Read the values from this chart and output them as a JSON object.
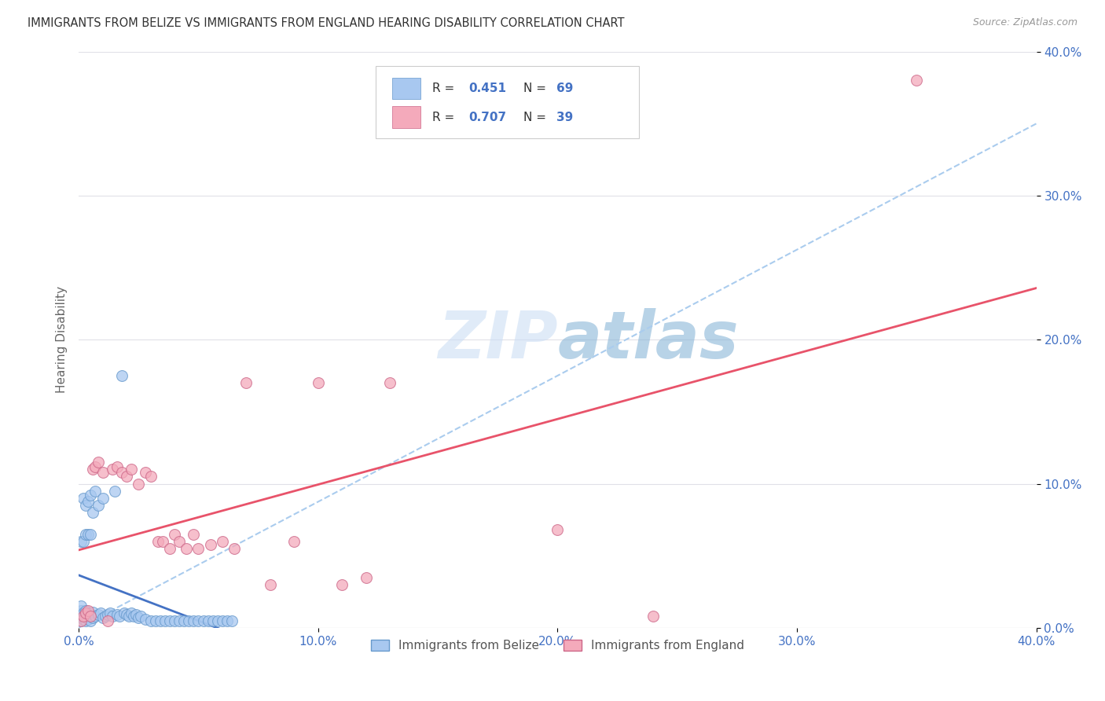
{
  "title": "IMMIGRANTS FROM BELIZE VS IMMIGRANTS FROM ENGLAND HEARING DISABILITY CORRELATION CHART",
  "source": "Source: ZipAtlas.com",
  "ylabel": "Hearing Disability",
  "xlim": [
    0.0,
    0.4
  ],
  "ylim": [
    0.0,
    0.4
  ],
  "yticks": [
    0.0,
    0.1,
    0.2,
    0.3,
    0.4
  ],
  "xticks": [
    0.0,
    0.1,
    0.2,
    0.3,
    0.4
  ],
  "belize_scatter_color": "#A8C8F0",
  "belize_edge_color": "#6699CC",
  "england_scatter_color": "#F4AABB",
  "england_edge_color": "#CC6688",
  "belize_line_color": "#4472C4",
  "england_line_color": "#E8536A",
  "dashed_line_color": "#AACCEE",
  "legend_text_color": "#4472C4",
  "watermark_color": "#C8DCF4",
  "background_color": "#FFFFFF",
  "grid_color": "#E0E0E8",
  "belize_x": [
    0.001,
    0.001,
    0.001,
    0.001,
    0.001,
    0.002,
    0.002,
    0.002,
    0.002,
    0.003,
    0.003,
    0.003,
    0.003,
    0.004,
    0.004,
    0.004,
    0.005,
    0.005,
    0.005,
    0.006,
    0.006,
    0.006,
    0.007,
    0.007,
    0.008,
    0.008,
    0.009,
    0.01,
    0.01,
    0.011,
    0.012,
    0.013,
    0.014,
    0.015,
    0.016,
    0.017,
    0.018,
    0.019,
    0.02,
    0.021,
    0.022,
    0.023,
    0.024,
    0.025,
    0.026,
    0.028,
    0.03,
    0.032,
    0.034,
    0.036,
    0.038,
    0.04,
    0.042,
    0.044,
    0.046,
    0.048,
    0.05,
    0.052,
    0.054,
    0.056,
    0.058,
    0.06,
    0.062,
    0.064,
    0.001,
    0.002,
    0.003,
    0.004,
    0.005
  ],
  "belize_y": [
    0.005,
    0.008,
    0.01,
    0.012,
    0.015,
    0.006,
    0.008,
    0.01,
    0.09,
    0.005,
    0.008,
    0.012,
    0.085,
    0.006,
    0.01,
    0.088,
    0.005,
    0.009,
    0.092,
    0.007,
    0.011,
    0.08,
    0.008,
    0.095,
    0.009,
    0.085,
    0.01,
    0.007,
    0.09,
    0.008,
    0.009,
    0.01,
    0.008,
    0.095,
    0.009,
    0.008,
    0.175,
    0.01,
    0.009,
    0.008,
    0.01,
    0.008,
    0.009,
    0.007,
    0.008,
    0.006,
    0.005,
    0.005,
    0.005,
    0.005,
    0.005,
    0.005,
    0.005,
    0.005,
    0.005,
    0.005,
    0.005,
    0.005,
    0.005,
    0.005,
    0.005,
    0.005,
    0.005,
    0.005,
    0.06,
    0.06,
    0.065,
    0.065,
    0.065
  ],
  "england_x": [
    0.001,
    0.002,
    0.003,
    0.004,
    0.005,
    0.006,
    0.007,
    0.008,
    0.01,
    0.012,
    0.014,
    0.016,
    0.018,
    0.02,
    0.022,
    0.025,
    0.028,
    0.03,
    0.033,
    0.035,
    0.038,
    0.04,
    0.042,
    0.045,
    0.048,
    0.05,
    0.055,
    0.06,
    0.065,
    0.07,
    0.08,
    0.09,
    0.1,
    0.11,
    0.12,
    0.13,
    0.2,
    0.24,
    0.35
  ],
  "england_y": [
    0.005,
    0.008,
    0.01,
    0.012,
    0.008,
    0.11,
    0.112,
    0.115,
    0.108,
    0.005,
    0.11,
    0.112,
    0.108,
    0.105,
    0.11,
    0.1,
    0.108,
    0.105,
    0.06,
    0.06,
    0.055,
    0.065,
    0.06,
    0.055,
    0.065,
    0.055,
    0.058,
    0.06,
    0.055,
    0.17,
    0.03,
    0.06,
    0.17,
    0.03,
    0.035,
    0.17,
    0.068,
    0.008,
    0.38
  ],
  "belize_R": 0.451,
  "belize_N": 69,
  "england_R": 0.707,
  "england_N": 39
}
